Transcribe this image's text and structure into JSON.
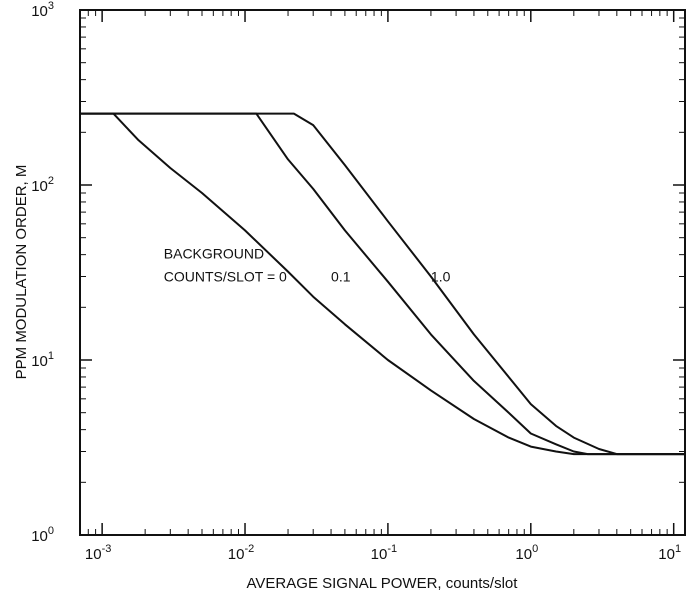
{
  "chart_data": {
    "type": "line",
    "title": "",
    "xlabel": "AVERAGE SIGNAL POWER, counts/slot",
    "ylabel": "PPM MODULATION ORDER, M",
    "xscale": "log",
    "yscale": "log",
    "xlim": [
      0.0007,
      12
    ],
    "ylim": [
      1,
      1000
    ],
    "grid": false,
    "xticks": [
      {
        "value": 0.001,
        "base": "10",
        "exp": "-3"
      },
      {
        "value": 0.01,
        "base": "10",
        "exp": "-2"
      },
      {
        "value": 0.1,
        "base": "10",
        "exp": "-1"
      },
      {
        "value": 1,
        "base": "10",
        "exp": "0"
      },
      {
        "value": 10,
        "base": "10",
        "exp": "1"
      }
    ],
    "yticks": [
      {
        "value": 1,
        "base": "10",
        "exp": "0"
      },
      {
        "value": 10,
        "base": "10",
        "exp": "1"
      },
      {
        "value": 100,
        "base": "10",
        "exp": "2"
      },
      {
        "value": 1000,
        "base": "10",
        "exp": "3"
      }
    ],
    "series": [
      {
        "label": "0",
        "x": [
          0.0007,
          0.0012,
          0.0018,
          0.003,
          0.005,
          0.01,
          0.02,
          0.03,
          0.05,
          0.1,
          0.2,
          0.4,
          0.7,
          1.0,
          1.5,
          2.0,
          12
        ],
        "y": [
          256,
          256,
          180,
          125,
          90,
          55,
          32,
          23,
          16,
          10,
          6.7,
          4.6,
          3.6,
          3.2,
          3.0,
          2.9,
          2.9
        ]
      },
      {
        "label": "0.1",
        "x": [
          0.0007,
          0.012,
          0.02,
          0.03,
          0.05,
          0.1,
          0.2,
          0.4,
          0.7,
          1.0,
          1.5,
          2.0,
          2.5,
          12
        ],
        "y": [
          256,
          256,
          140,
          95,
          55,
          28,
          14,
          7.6,
          5.0,
          3.8,
          3.3,
          3.0,
          2.9,
          2.9
        ]
      },
      {
        "label": "1.0",
        "x": [
          0.0007,
          0.022,
          0.03,
          0.05,
          0.1,
          0.2,
          0.4,
          0.7,
          1.0,
          1.5,
          2.0,
          3.0,
          4.0,
          12
        ],
        "y": [
          256,
          256,
          220,
          130,
          62,
          30,
          14,
          8.0,
          5.6,
          4.2,
          3.6,
          3.1,
          2.9,
          2.9
        ]
      }
    ],
    "annotations": [
      {
        "text": "BACKGROUND",
        "x": 0.0027,
        "y": 38
      },
      {
        "text": "COUNTS/SLOT = 0",
        "x": 0.0027,
        "y": 28
      },
      {
        "text": "0.1",
        "x": 0.04,
        "y": 28
      },
      {
        "text": "1.0",
        "x": 0.2,
        "y": 28
      }
    ]
  }
}
